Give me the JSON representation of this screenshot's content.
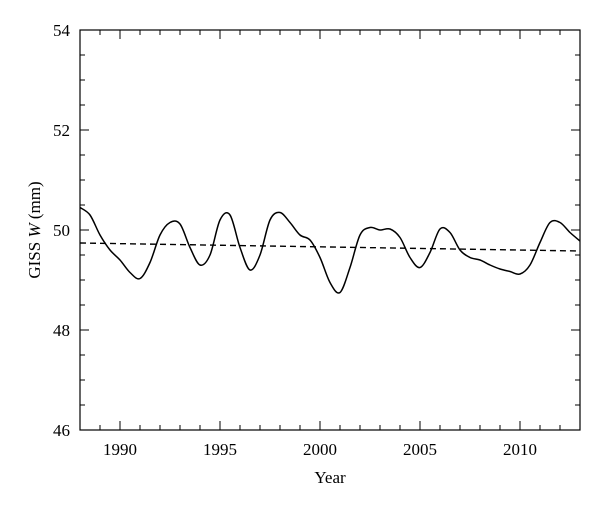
{
  "chart_data": {
    "type": "line",
    "title": "",
    "xlabel": "Year",
    "ylabel_prefix": "GISS ",
    "ylabel_var": "W",
    "ylabel_suffix": " (mm)",
    "xlim": [
      1988,
      2013
    ],
    "ylim": [
      46,
      54
    ],
    "x_ticks": [
      1990,
      1995,
      2000,
      2005,
      2010
    ],
    "y_ticks": [
      46,
      48,
      50,
      52,
      54
    ],
    "grid": false,
    "legend": "none",
    "series": [
      {
        "style": "solid",
        "x": [
          1988.0,
          1988.5,
          1989.0,
          1989.5,
          1990.0,
          1990.5,
          1991.0,
          1991.5,
          1992.0,
          1992.5,
          1993.0,
          1993.5,
          1994.0,
          1994.5,
          1995.0,
          1995.5,
          1996.0,
          1996.5,
          1997.0,
          1997.5,
          1998.0,
          1998.5,
          1999.0,
          1999.5,
          2000.0,
          2000.5,
          2001.0,
          2001.5,
          2002.0,
          2002.5,
          2003.0,
          2003.5,
          2004.0,
          2004.5,
          2005.0,
          2005.5,
          2006.0,
          2006.5,
          2007.0,
          2007.5,
          2008.0,
          2008.5,
          2009.0,
          2009.5,
          2010.0,
          2010.5,
          2011.0,
          2011.5,
          2012.0,
          2012.5,
          2013.0
        ],
        "y": [
          50.45,
          50.3,
          49.9,
          49.6,
          49.4,
          49.15,
          49.03,
          49.35,
          49.9,
          50.15,
          50.12,
          49.65,
          49.3,
          49.5,
          50.2,
          50.3,
          49.65,
          49.2,
          49.5,
          50.2,
          50.35,
          50.15,
          49.9,
          49.8,
          49.45,
          48.95,
          48.75,
          49.25,
          49.9,
          50.05,
          50.0,
          50.02,
          49.85,
          49.45,
          49.25,
          49.55,
          50.02,
          49.95,
          49.6,
          49.45,
          49.4,
          49.3,
          49.22,
          49.17,
          49.12,
          49.3,
          49.75,
          50.15,
          50.15,
          49.95,
          49.78
        ]
      },
      {
        "style": "dashed",
        "x": [
          1988,
          2013
        ],
        "y": [
          49.74,
          49.58
        ]
      }
    ]
  }
}
